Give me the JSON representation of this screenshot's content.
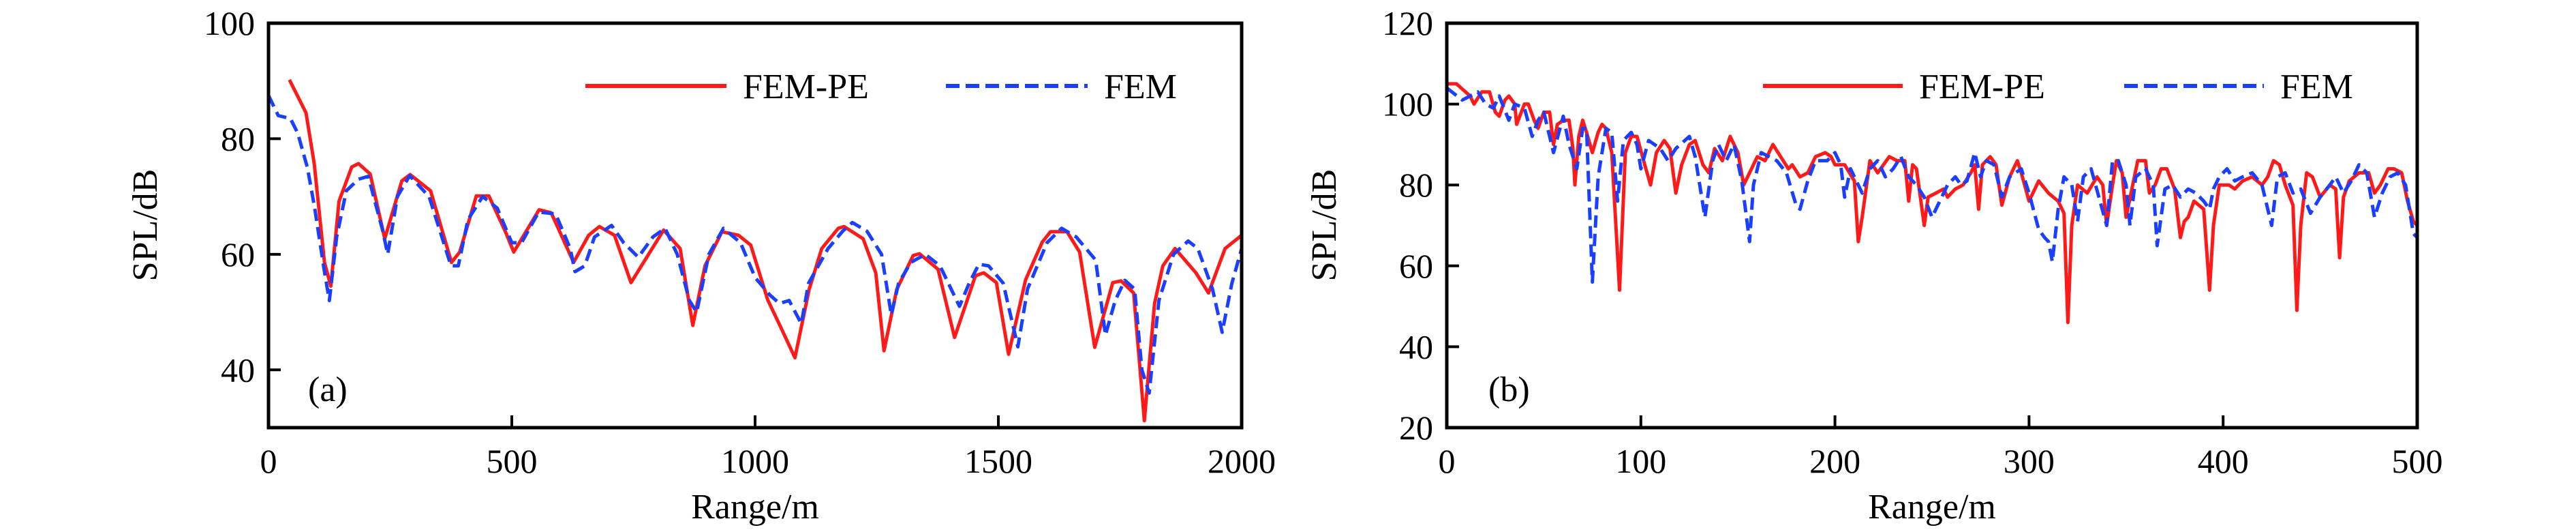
{
  "colors": {
    "fem_pe": "#ff1a1a",
    "fem": "#1a3fff",
    "axis": "#000000"
  },
  "chart_data": [
    {
      "type": "line",
      "panel_tag": "(a)",
      "xlabel": "Range/m",
      "ylabel": "SPL/dB",
      "xlim": [
        0,
        2000
      ],
      "ylim": [
        30,
        100
      ],
      "xticks": [
        0,
        500,
        1000,
        1500,
        2000
      ],
      "xtick_labels": [
        "0",
        "500",
        "1000",
        "1500",
        "2000"
      ],
      "yticks": [
        40,
        60,
        80,
        100
      ],
      "ytick_labels": [
        "40",
        "60",
        "80",
        "100"
      ],
      "grid": false,
      "legend_position": "top-right",
      "series": [
        {
          "name": "FEM-PE",
          "style": "solid",
          "x": [
            43,
            77,
            94,
            115,
            128,
            145,
            171,
            185,
            209,
            239,
            274,
            291,
            333,
            376,
            393,
            427,
            453,
            487,
            504,
            556,
            581,
            627,
            658,
            680,
            711,
            745,
            812,
            846,
            872,
            897,
            932,
            966,
            991,
            1026,
            1051,
            1082,
            1111,
            1137,
            1171,
            1183,
            1222,
            1248,
            1265,
            1291,
            1325,
            1338,
            1376,
            1410,
            1453,
            1470,
            1496,
            1521,
            1556,
            1590,
            1607,
            1641,
            1667,
            1698,
            1735,
            1752,
            1778,
            1800,
            1821,
            1838,
            1863,
            1906,
            1932,
            1966,
            2000
          ],
          "y": [
            90.2,
            84.5,
            75.7,
            58.6,
            54.5,
            69.2,
            75.1,
            75.7,
            73.9,
            62.7,
            72.7,
            73.8,
            71,
            58.6,
            60.4,
            70.1,
            70.1,
            63.9,
            60.4,
            67.7,
            67.2,
            58.6,
            63.3,
            64.8,
            63.3,
            55.1,
            64.2,
            61,
            47.7,
            58,
            63.9,
            63.3,
            61.6,
            52.1,
            47.7,
            42.1,
            53.9,
            61,
            64.5,
            64.8,
            62.7,
            56.8,
            43.3,
            53.9,
            59.8,
            60.1,
            57.4,
            45.6,
            56.3,
            56.8,
            55.1,
            42.7,
            55.6,
            62.1,
            63.9,
            63.9,
            60.4,
            43.9,
            55.1,
            55.4,
            53.3,
            31.2,
            51.5,
            58,
            61,
            56.8,
            53.3,
            61,
            63.3
          ]
        },
        {
          "name": "FEM",
          "style": "dashed",
          "x": [
            0,
            20,
            45,
            60,
            80,
            95,
            115,
            125,
            140,
            160,
            185,
            205,
            235,
            245,
            265,
            290,
            330,
            375,
            390,
            410,
            440,
            470,
            500,
            520,
            555,
            590,
            620,
            630,
            650,
            670,
            705,
            730,
            760,
            790,
            815,
            840,
            865,
            880,
            905,
            935,
            970,
            1000,
            1030,
            1050,
            1070,
            1095,
            1110,
            1150,
            1180,
            1200,
            1230,
            1260,
            1280,
            1295,
            1320,
            1350,
            1380,
            1420,
            1440,
            1460,
            1480,
            1510,
            1540,
            1560,
            1600,
            1630,
            1660,
            1700,
            1720,
            1740,
            1760,
            1780,
            1795,
            1810,
            1830,
            1860,
            1890,
            1910,
            1940,
            1960,
            1980,
            2000
          ],
          "y": [
            87.5,
            84,
            83.5,
            81,
            75,
            68,
            57,
            52,
            63,
            71,
            73,
            73.5,
            64,
            60,
            70,
            73.6,
            70,
            58,
            58,
            66,
            70,
            68,
            62,
            62,
            67.3,
            67,
            61,
            57,
            58,
            63,
            65,
            62,
            59.5,
            63,
            64.5,
            60,
            52,
            50,
            60,
            64.5,
            62,
            56,
            53,
            51.5,
            52,
            48,
            55,
            61,
            64,
            65.5,
            64,
            60,
            49.5,
            55,
            58.6,
            60,
            58,
            51,
            55,
            58.3,
            58,
            55,
            44,
            54,
            62,
            64.5,
            63,
            59,
            46,
            52,
            55.5,
            54,
            40,
            36,
            52,
            60,
            62.3,
            61,
            54,
            46.5,
            55,
            61
          ]
        }
      ]
    },
    {
      "type": "line",
      "panel_tag": "(b)",
      "xlabel": "Range/m",
      "ylabel": "SPL/dB",
      "xlim": [
        0,
        500
      ],
      "ylim": [
        20,
        120
      ],
      "xticks": [
        0,
        100,
        200,
        300,
        400,
        500
      ],
      "xtick_labels": [
        "0",
        "100",
        "200",
        "300",
        "400",
        "500"
      ],
      "yticks": [
        20,
        40,
        60,
        80,
        100,
        120
      ],
      "ytick_labels": [
        "20",
        "40",
        "60",
        "80",
        "100",
        "120"
      ],
      "grid": false,
      "legend_position": "top-right",
      "series": [
        {
          "name": "FEM-PE",
          "style": "solid",
          "x": [
            0,
            5,
            12,
            14,
            18,
            22,
            25,
            27,
            30,
            32,
            35,
            36,
            40,
            42,
            45,
            47,
            50,
            53,
            55,
            57,
            60,
            63,
            65,
            66,
            68,
            70,
            72,
            75,
            78,
            80,
            82,
            85,
            89,
            92,
            95,
            98,
            102,
            105,
            108,
            112,
            115,
            118,
            121,
            125,
            128,
            132,
            135,
            138,
            142,
            146,
            150,
            153,
            156,
            160,
            164,
            168,
            172,
            176,
            178,
            182,
            186,
            190,
            195,
            198,
            200,
            205,
            210,
            212,
            214,
            218,
            222,
            225,
            228,
            232,
            236,
            238,
            240,
            242,
            246,
            248,
            252,
            256,
            258,
            262,
            266,
            270,
            272,
            274,
            276,
            280,
            283,
            286,
            290,
            294,
            296,
            300,
            305,
            310,
            315,
            318,
            320,
            322,
            325,
            330,
            335,
            338,
            340,
            343,
            345,
            348,
            350,
            353,
            356,
            360,
            362,
            365,
            368,
            371,
            375,
            378,
            380,
            382,
            385,
            390,
            393,
            395,
            398,
            403,
            406,
            410,
            415,
            420,
            423,
            426,
            429,
            432,
            436,
            438,
            440,
            443,
            446,
            450,
            455,
            458,
            460,
            462,
            465,
            470,
            475,
            478,
            481,
            485,
            488,
            492,
            495,
            498,
            500
          ],
          "y": [
            105,
            105,
            102,
            100,
            103,
            103,
            98,
            97,
            101,
            102,
            100,
            95,
            100,
            100,
            96,
            94,
            98,
            98,
            90,
            95,
            96,
            96,
            89,
            80,
            92,
            96,
            93,
            88,
            93,
            95,
            94,
            88,
            54,
            88,
            92,
            92,
            85,
            80,
            88,
            91,
            89,
            78,
            85,
            90,
            91,
            85,
            83,
            89,
            86,
            92,
            88,
            80,
            83,
            87,
            86,
            90,
            87,
            84,
            85,
            82,
            83,
            87,
            88,
            87,
            85,
            85,
            81,
            66,
            72,
            86,
            83,
            85,
            87,
            86,
            86,
            76,
            85,
            84,
            70,
            77,
            78,
            79,
            77,
            79,
            80,
            83,
            85,
            74,
            85,
            87,
            85,
            75,
            82,
            86,
            83,
            76,
            81,
            78,
            76,
            73,
            46,
            70,
            80,
            78,
            82,
            80,
            70,
            80,
            86,
            83,
            72,
            79,
            86,
            86,
            78,
            80,
            84,
            84,
            79,
            67,
            71,
            72,
            76,
            74,
            54,
            70,
            80,
            80,
            79,
            81,
            82,
            80,
            82,
            86,
            85,
            80,
            75,
            49,
            70,
            83,
            82,
            77,
            80,
            79,
            62,
            77,
            81,
            83,
            83,
            78,
            80,
            84,
            84,
            83,
            76,
            71,
            70
          ]
        },
        {
          "name": "FEM",
          "style": "dashed",
          "x": [
            0,
            8,
            16,
            20,
            24,
            27,
            32,
            35,
            40,
            44,
            47,
            50,
            55,
            60,
            63,
            67,
            70,
            72,
            75,
            78,
            82,
            85,
            88,
            91,
            95,
            98,
            100,
            104,
            110,
            114,
            118,
            125,
            128,
            133,
            137,
            140,
            144,
            148,
            152,
            156,
            158,
            162,
            166,
            170,
            175,
            180,
            182,
            186,
            190,
            196,
            200,
            203,
            205,
            208,
            212,
            214,
            218,
            222,
            226,
            230,
            234,
            238,
            242,
            246,
            250,
            254,
            258,
            262,
            265,
            268,
            272,
            275,
            278,
            282,
            286,
            290,
            296,
            300,
            305,
            308,
            310,
            312,
            315,
            318,
            322,
            325,
            328,
            332,
            336,
            340,
            343,
            346,
            350,
            352,
            355,
            360,
            364,
            366,
            370,
            374,
            378,
            382,
            386,
            390,
            393,
            395,
            398,
            402,
            406,
            410,
            415,
            420,
            425,
            428,
            432,
            436,
            440,
            445,
            450,
            455,
            458,
            462,
            466,
            470,
            474,
            478,
            482,
            486,
            490,
            494,
            498,
            500
          ],
          "y": [
            104,
            101,
            103,
            100,
            99,
            102,
            96,
            100,
            99,
            92,
            96,
            98,
            88,
            97,
            90,
            84,
            94,
            94,
            56,
            82,
            94,
            93,
            76,
            91,
            93,
            90,
            84,
            91,
            89,
            86,
            89,
            92,
            87,
            72,
            86,
            90,
            86,
            90,
            81,
            66,
            80,
            88,
            87,
            86,
            83,
            75,
            74,
            81,
            86,
            86,
            88,
            85,
            77,
            84,
            80,
            78,
            84,
            86,
            82,
            84,
            87,
            82,
            80,
            77,
            72,
            76,
            80,
            82,
            80,
            81,
            88,
            82,
            86,
            85,
            77,
            82,
            84,
            78,
            69,
            67,
            66,
            61,
            74,
            82,
            80,
            71,
            82,
            84,
            77,
            70,
            86,
            86,
            80,
            70,
            82,
            84,
            80,
            65,
            79,
            80,
            77,
            79,
            78,
            76,
            74,
            79,
            82,
            84,
            81,
            82,
            83,
            80,
            70,
            82,
            83,
            78,
            79,
            73,
            77,
            80,
            82,
            78,
            81,
            85,
            83,
            72,
            78,
            82,
            83,
            80,
            68,
            67
          ]
        }
      ]
    }
  ]
}
